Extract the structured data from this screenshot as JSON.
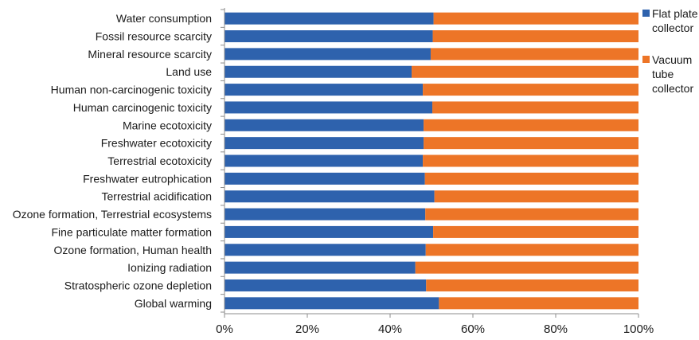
{
  "chart_data": {
    "type": "bar",
    "orientation": "horizontal",
    "stacked": "percent",
    "categories": [
      "Water consumption",
      "Fossil resource scarcity",
      "Mineral resource scarcity",
      "Land use",
      "Human non-carcinogenic toxicity",
      "Human carcinogenic toxicity",
      "Marine ecotoxicity",
      "Freshwater ecotoxicity",
      "Terrestrial ecotoxicity",
      "Freshwater eutrophication",
      "Terrestrial acidification",
      "Ozone formation, Terrestrial ecosystems",
      "Fine particulate matter formation",
      "Ozone formation, Human health",
      "Ionizing radiation",
      "Stratospheric ozone depletion",
      "Global warming"
    ],
    "series": [
      {
        "name": "Flat plate collector",
        "color": "#2e62ad",
        "values": [
          50.5,
          50.3,
          49.8,
          45.2,
          47.9,
          50.2,
          48.1,
          48.1,
          47.9,
          48.4,
          50.7,
          48.5,
          50.4,
          48.6,
          46.1,
          48.7,
          51.8
        ]
      },
      {
        "name": "Vacuum tube collector",
        "color": "#ed7527",
        "values": [
          49.5,
          49.7,
          50.2,
          54.8,
          52.1,
          49.8,
          51.9,
          51.9,
          52.1,
          51.6,
          49.3,
          51.5,
          49.6,
          51.4,
          53.9,
          51.3,
          48.2
        ]
      }
    ],
    "x_ticks": [
      "0%",
      "20%",
      "40%",
      "60%",
      "80%",
      "100%"
    ],
    "xlim": [
      0,
      100
    ],
    "grid": false,
    "legend_position": "right"
  },
  "legend": {
    "flat_plate_lines": [
      "Flat plate",
      "collector"
    ],
    "vacuum_tube_lines": [
      "Vacuum",
      "tube",
      "collector"
    ]
  }
}
